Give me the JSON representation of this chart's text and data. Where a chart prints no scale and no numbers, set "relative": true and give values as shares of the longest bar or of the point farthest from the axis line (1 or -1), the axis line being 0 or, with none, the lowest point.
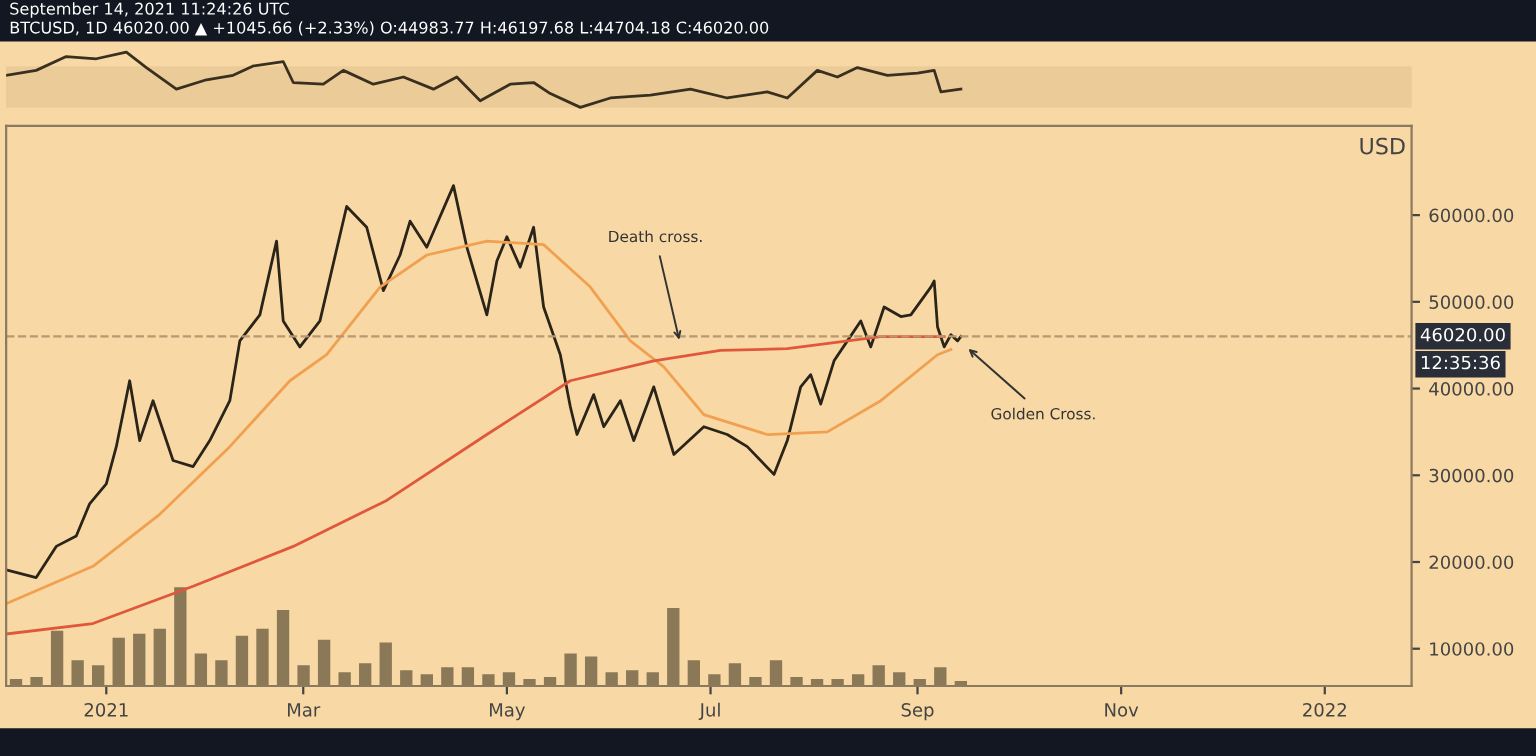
{
  "chart_data": [
    {
      "type": "line",
      "relative": true,
      "grid": false,
      "marker": "none",
      "line_style": "solid",
      "title": "BTCUSD, 1D 46020.00 ▲ +1045.66 (+2.33%) O:44983.77 H:46197.68 L:44704.18 C:46020.00",
      "subtitle": "September 14, 2021 11:24:26 UTC",
      "x": [
        "2020-12-02",
        "2020-12-11",
        "2020-12-20",
        "2020-12-29",
        "2021-01-07",
        "2021-01-13",
        "2021-01-22",
        "2021-01-31",
        "2021-02-08",
        "2021-02-14",
        "2021-02-23",
        "2021-02-26",
        "2021-03-07",
        "2021-03-13",
        "2021-03-22",
        "2021-03-31",
        "2021-04-09",
        "2021-04-16",
        "2021-04-23",
        "2021-05-02",
        "2021-05-09",
        "2021-05-14",
        "2021-05-23",
        "2021-06-01",
        "2021-06-13",
        "2021-06-25",
        "2021-07-06",
        "2021-07-18",
        "2021-07-24",
        "2021-08-02",
        "2021-08-08",
        "2021-08-14",
        "2021-08-23",
        "2021-09-01",
        "2021-09-06",
        "2021-09-08",
        "2021-09-14"
      ],
      "xlim": [
        "2020-12-02",
        "2022-01-27"
      ],
      "series": [
        {
          "color": "#3a3020",
          "values": [
            0.58,
            0.67,
            0.92,
            0.88,
            1.0,
            0.72,
            0.33,
            0.5,
            0.58,
            0.75,
            0.83,
            0.45,
            0.42,
            0.67,
            0.42,
            0.55,
            0.33,
            0.55,
            0.12,
            0.42,
            0.45,
            0.25,
            0.0,
            0.17,
            0.22,
            0.33,
            0.17,
            0.28,
            0.17,
            0.67,
            0.55,
            0.72,
            0.58,
            0.62,
            0.67,
            0.28,
            0.33
          ]
        }
      ],
      "bands": [
        {
          "axis": "y",
          "from": 0.02,
          "to": 0.72,
          "color": "#ebcb98"
        }
      ]
    },
    {
      "type": "line",
      "ylabel": "USD",
      "xlim": [
        "2020-12-02",
        "2022-01-27"
      ],
      "ylim": [
        5700,
        70300
      ],
      "xticks": [
        {
          "value": "2021-01-01",
          "label": "2021"
        },
        {
          "value": "2021-03-01",
          "label": "Mar"
        },
        {
          "value": "2021-05-01",
          "label": "May"
        },
        {
          "value": "2021-07-01",
          "label": "Jul"
        },
        {
          "value": "2021-09-01",
          "label": "Sep"
        },
        {
          "value": "2021-11-01",
          "label": "Nov"
        },
        {
          "value": "2022-01-01",
          "label": "2022"
        }
      ],
      "yticks": [
        {
          "value": 10000,
          "label": "10000.00"
        },
        {
          "value": 20000,
          "label": "20000.00"
        },
        {
          "value": 30000,
          "label": "30000.00"
        },
        {
          "value": 40000,
          "label": "40000.00"
        },
        {
          "value": 50000,
          "label": "50000.00"
        },
        {
          "value": 60000,
          "label": "60000.00"
        }
      ],
      "grid": false,
      "marker": "none",
      "line_style": "solid",
      "series": [
        {
          "color": "#2b2418",
          "x": [
            "2020-12-02",
            "2020-12-11",
            "2020-12-17",
            "2020-12-23",
            "2020-12-27",
            "2021-01-01",
            "2021-01-04",
            "2021-01-08",
            "2021-01-11",
            "2021-01-15",
            "2021-01-21",
            "2021-01-27",
            "2021-02-01",
            "2021-02-07",
            "2021-02-10",
            "2021-02-16",
            "2021-02-21",
            "2021-02-23",
            "2021-02-28",
            "2021-03-06",
            "2021-03-14",
            "2021-03-20",
            "2021-03-25",
            "2021-03-30",
            "2021-04-02",
            "2021-04-07",
            "2021-04-15",
            "2021-04-19",
            "2021-04-25",
            "2021-04-28",
            "2021-05-01",
            "2021-05-05",
            "2021-05-09",
            "2021-05-12",
            "2021-05-17",
            "2021-05-20",
            "2021-05-22",
            "2021-05-27",
            "2021-05-30",
            "2021-06-04",
            "2021-06-08",
            "2021-06-14",
            "2021-06-20",
            "2021-06-29",
            "2021-07-06",
            "2021-07-12",
            "2021-07-20",
            "2021-07-24",
            "2021-07-28",
            "2021-07-31",
            "2021-08-03",
            "2021-08-07",
            "2021-08-11",
            "2021-08-15",
            "2021-08-18",
            "2021-08-22",
            "2021-08-27",
            "2021-08-30",
            "2021-09-05",
            "2021-09-06",
            "2021-09-07",
            "2021-09-09",
            "2021-09-11",
            "2021-09-13",
            "2021-09-14"
          ],
          "values": [
            19100,
            18200,
            21800,
            23000,
            26700,
            29000,
            33300,
            40900,
            34000,
            38600,
            31700,
            31000,
            34000,
            38600,
            45500,
            48500,
            57000,
            47800,
            44800,
            47800,
            61000,
            58600,
            51300,
            55400,
            59300,
            56300,
            63400,
            56300,
            48500,
            54700,
            57500,
            54000,
            58600,
            49400,
            43900,
            37900,
            34700,
            39300,
            35600,
            38600,
            34000,
            40200,
            32400,
            35600,
            34700,
            33300,
            30100,
            34000,
            40200,
            41600,
            38200,
            43200,
            45500,
            47800,
            44800,
            49400,
            48300,
            48500,
            51700,
            52400,
            47100,
            44800,
            46200,
            45500,
            46000
          ]
        },
        {
          "color": "#f0a050",
          "x": [
            "2020-12-02",
            "2020-12-28",
            "2021-01-17",
            "2021-02-07",
            "2021-02-25",
            "2021-03-08",
            "2021-03-24",
            "2021-04-07",
            "2021-04-25",
            "2021-05-12",
            "2021-05-26",
            "2021-06-07",
            "2021-06-17",
            "2021-06-29",
            "2021-07-18",
            "2021-08-05",
            "2021-08-21",
            "2021-09-07",
            "2021-09-11"
          ],
          "values": [
            15200,
            19500,
            25500,
            33300,
            40900,
            43900,
            51700,
            55400,
            57000,
            56600,
            51700,
            45500,
            42500,
            37000,
            34700,
            35000,
            38600,
            43900,
            44500
          ]
        },
        {
          "color": "#e0583c",
          "x": [
            "2020-12-02",
            "2020-12-28",
            "2021-01-27",
            "2021-02-26",
            "2021-03-26",
            "2021-04-25",
            "2021-05-20",
            "2021-06-14",
            "2021-07-04",
            "2021-07-24",
            "2021-08-21",
            "2021-09-09"
          ],
          "values": [
            11700,
            12900,
            17200,
            21800,
            27100,
            34700,
            40900,
            43200,
            44400,
            44600,
            46000,
            46000
          ]
        }
      ],
      "ref_lines": [
        {
          "axis": "y",
          "value": 46020,
          "label": "46020.00",
          "color": "#b89870",
          "line_style": "dashed"
        }
      ],
      "annotations": [
        {
          "text": "Death cross.",
          "x": "2021-06-22",
          "y": 45000
        },
        {
          "text": "Golden Cross.",
          "x": "2021-09-15",
          "y": 45000
        },
        "12:35:36"
      ]
    },
    {
      "type": "bar",
      "relative": true,
      "grid": false,
      "color": "#8a7856",
      "categories": [
        null,
        null,
        null,
        null,
        null,
        null,
        null,
        null,
        null,
        null,
        null,
        null,
        null,
        null,
        null,
        null,
        null,
        null,
        null,
        null,
        null,
        null,
        null,
        null,
        null,
        null,
        null,
        null,
        null,
        null,
        null,
        null,
        null,
        null,
        null,
        null,
        null,
        null,
        null,
        null,
        null,
        null,
        null,
        null,
        null,
        null,
        null
      ],
      "values": [
        0.07,
        0.09,
        0.56,
        0.26,
        0.21,
        0.49,
        0.53,
        0.58,
        1.0,
        0.33,
        0.26,
        0.51,
        0.58,
        0.77,
        0.21,
        0.47,
        0.14,
        0.23,
        0.44,
        0.16,
        0.12,
        0.19,
        0.19,
        0.12,
        0.14,
        0.07,
        0.09,
        0.33,
        0.3,
        0.14,
        0.16,
        0.14,
        0.79,
        0.26,
        0.12,
        0.23,
        0.09,
        0.26,
        0.09,
        0.07,
        0.07,
        0.12,
        0.21,
        0.14,
        0.07,
        0.19,
        0.05
      ]
    }
  ]
}
